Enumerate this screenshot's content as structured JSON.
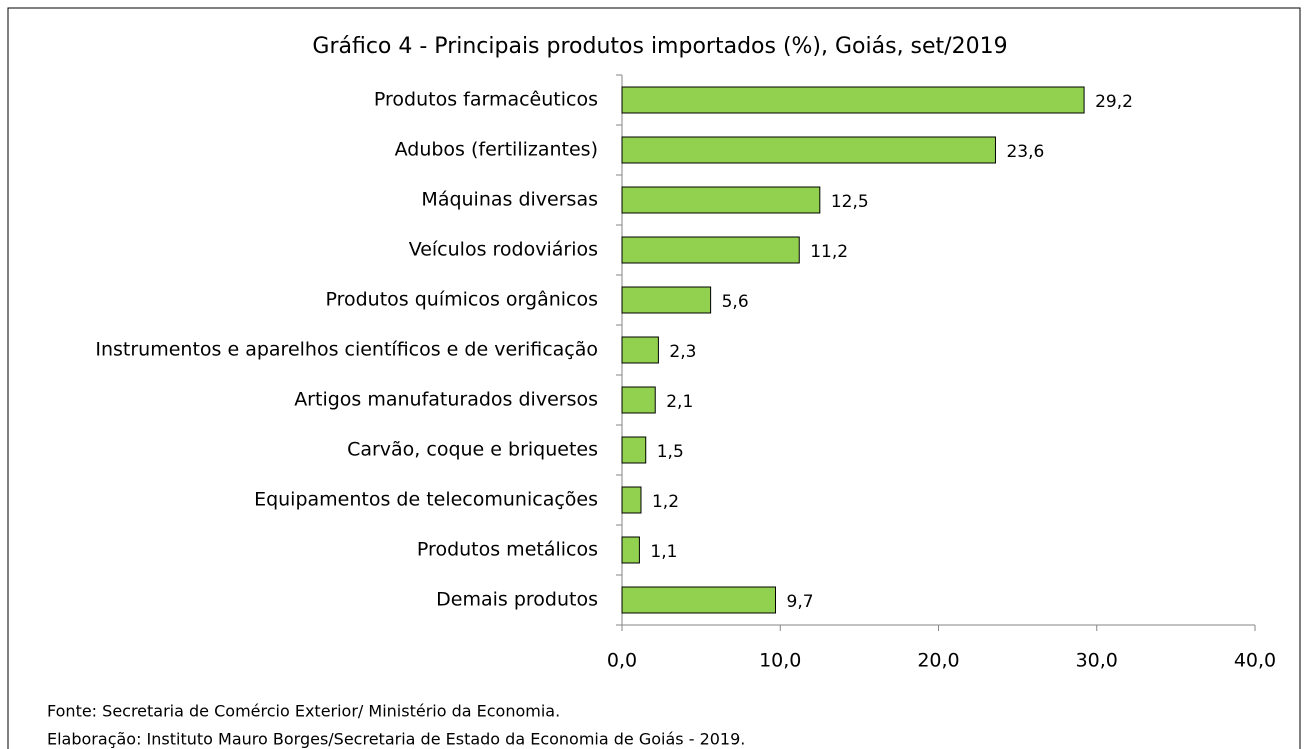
{
  "chart_data": {
    "type": "barh",
    "title": "Gráfico 4 - Principais produtos importados (%), Goiás, set/2019",
    "categories": [
      "Produtos farmacêuticos",
      "Adubos (fertilizantes)",
      "Máquinas diversas",
      "Veículos rodoviários",
      "Produtos químicos orgânicos",
      "Instrumentos e aparelhos científicos e de verificação",
      "Artigos manufaturados diversos",
      "Carvão, coque e briquetes",
      "Equipamentos de telecomunicações",
      "Produtos metálicos",
      "Demais produtos"
    ],
    "values": [
      29.2,
      23.6,
      12.5,
      11.2,
      5.6,
      2.3,
      2.1,
      1.5,
      1.2,
      1.1,
      9.7
    ],
    "value_labels": [
      "29,2",
      "23,6",
      "12,5",
      "11,2",
      "5,6",
      "2,3",
      "2,1",
      "1,5",
      "1,2",
      "1,1",
      "9,7"
    ],
    "color": "#92d050",
    "xlim": [
      0,
      40
    ],
    "xticks": [
      {
        "value": 0,
        "label": "0,0"
      },
      {
        "value": 10,
        "label": "10,0"
      },
      {
        "value": 20,
        "label": "20,0"
      },
      {
        "value": 30,
        "label": "30,0"
      },
      {
        "value": 40,
        "label": "40,0"
      }
    ],
    "source": "Fonte: Secretaria de Comércio Exterior/ Ministério da Economia.",
    "note": "Elaboração: Instituto Mauro Borges/Secretaria de Estado da Economia de Goiás - 2019."
  }
}
